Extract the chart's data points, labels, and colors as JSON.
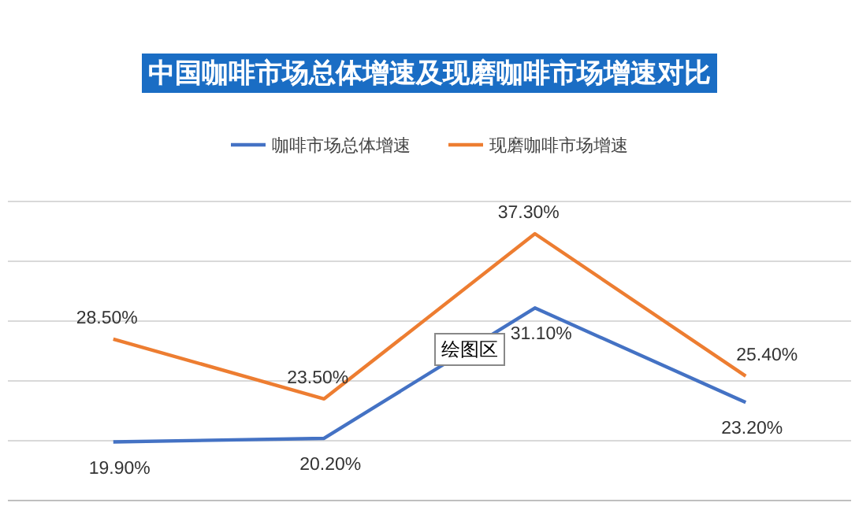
{
  "chart_data": {
    "type": "line",
    "title": "中国咖啡市场总体增速及现磨咖啡市场增速对比",
    "categories": [
      null,
      null,
      null,
      null
    ],
    "series": [
      {
        "name": "咖啡市场总体增速",
        "color": "#4472c4",
        "values": [
          19.9,
          20.2,
          31.1,
          23.2
        ],
        "value_labels": [
          "19.90%",
          "20.20%",
          "31.10%",
          "23.20%"
        ]
      },
      {
        "name": "现磨咖啡市场增速",
        "color": "#ed7d31",
        "values": [
          28.5,
          23.5,
          37.3,
          25.4
        ],
        "value_labels": [
          "28.50%",
          "23.50%",
          "37.30%",
          "25.40%"
        ]
      }
    ],
    "ylim": [
      15,
      40
    ],
    "yticks": [
      {
        "value": 15,
        "label": null
      },
      {
        "value": 20,
        "label": null
      },
      {
        "value": 25,
        "label": null
      },
      {
        "value": 30,
        "label": null
      },
      {
        "value": 35,
        "label": null
      },
      {
        "value": 40,
        "label": null
      }
    ],
    "grid": "y",
    "legend": "top",
    "marker": "none",
    "line_style": "solid",
    "annotations": [
      "绘图区"
    ]
  }
}
